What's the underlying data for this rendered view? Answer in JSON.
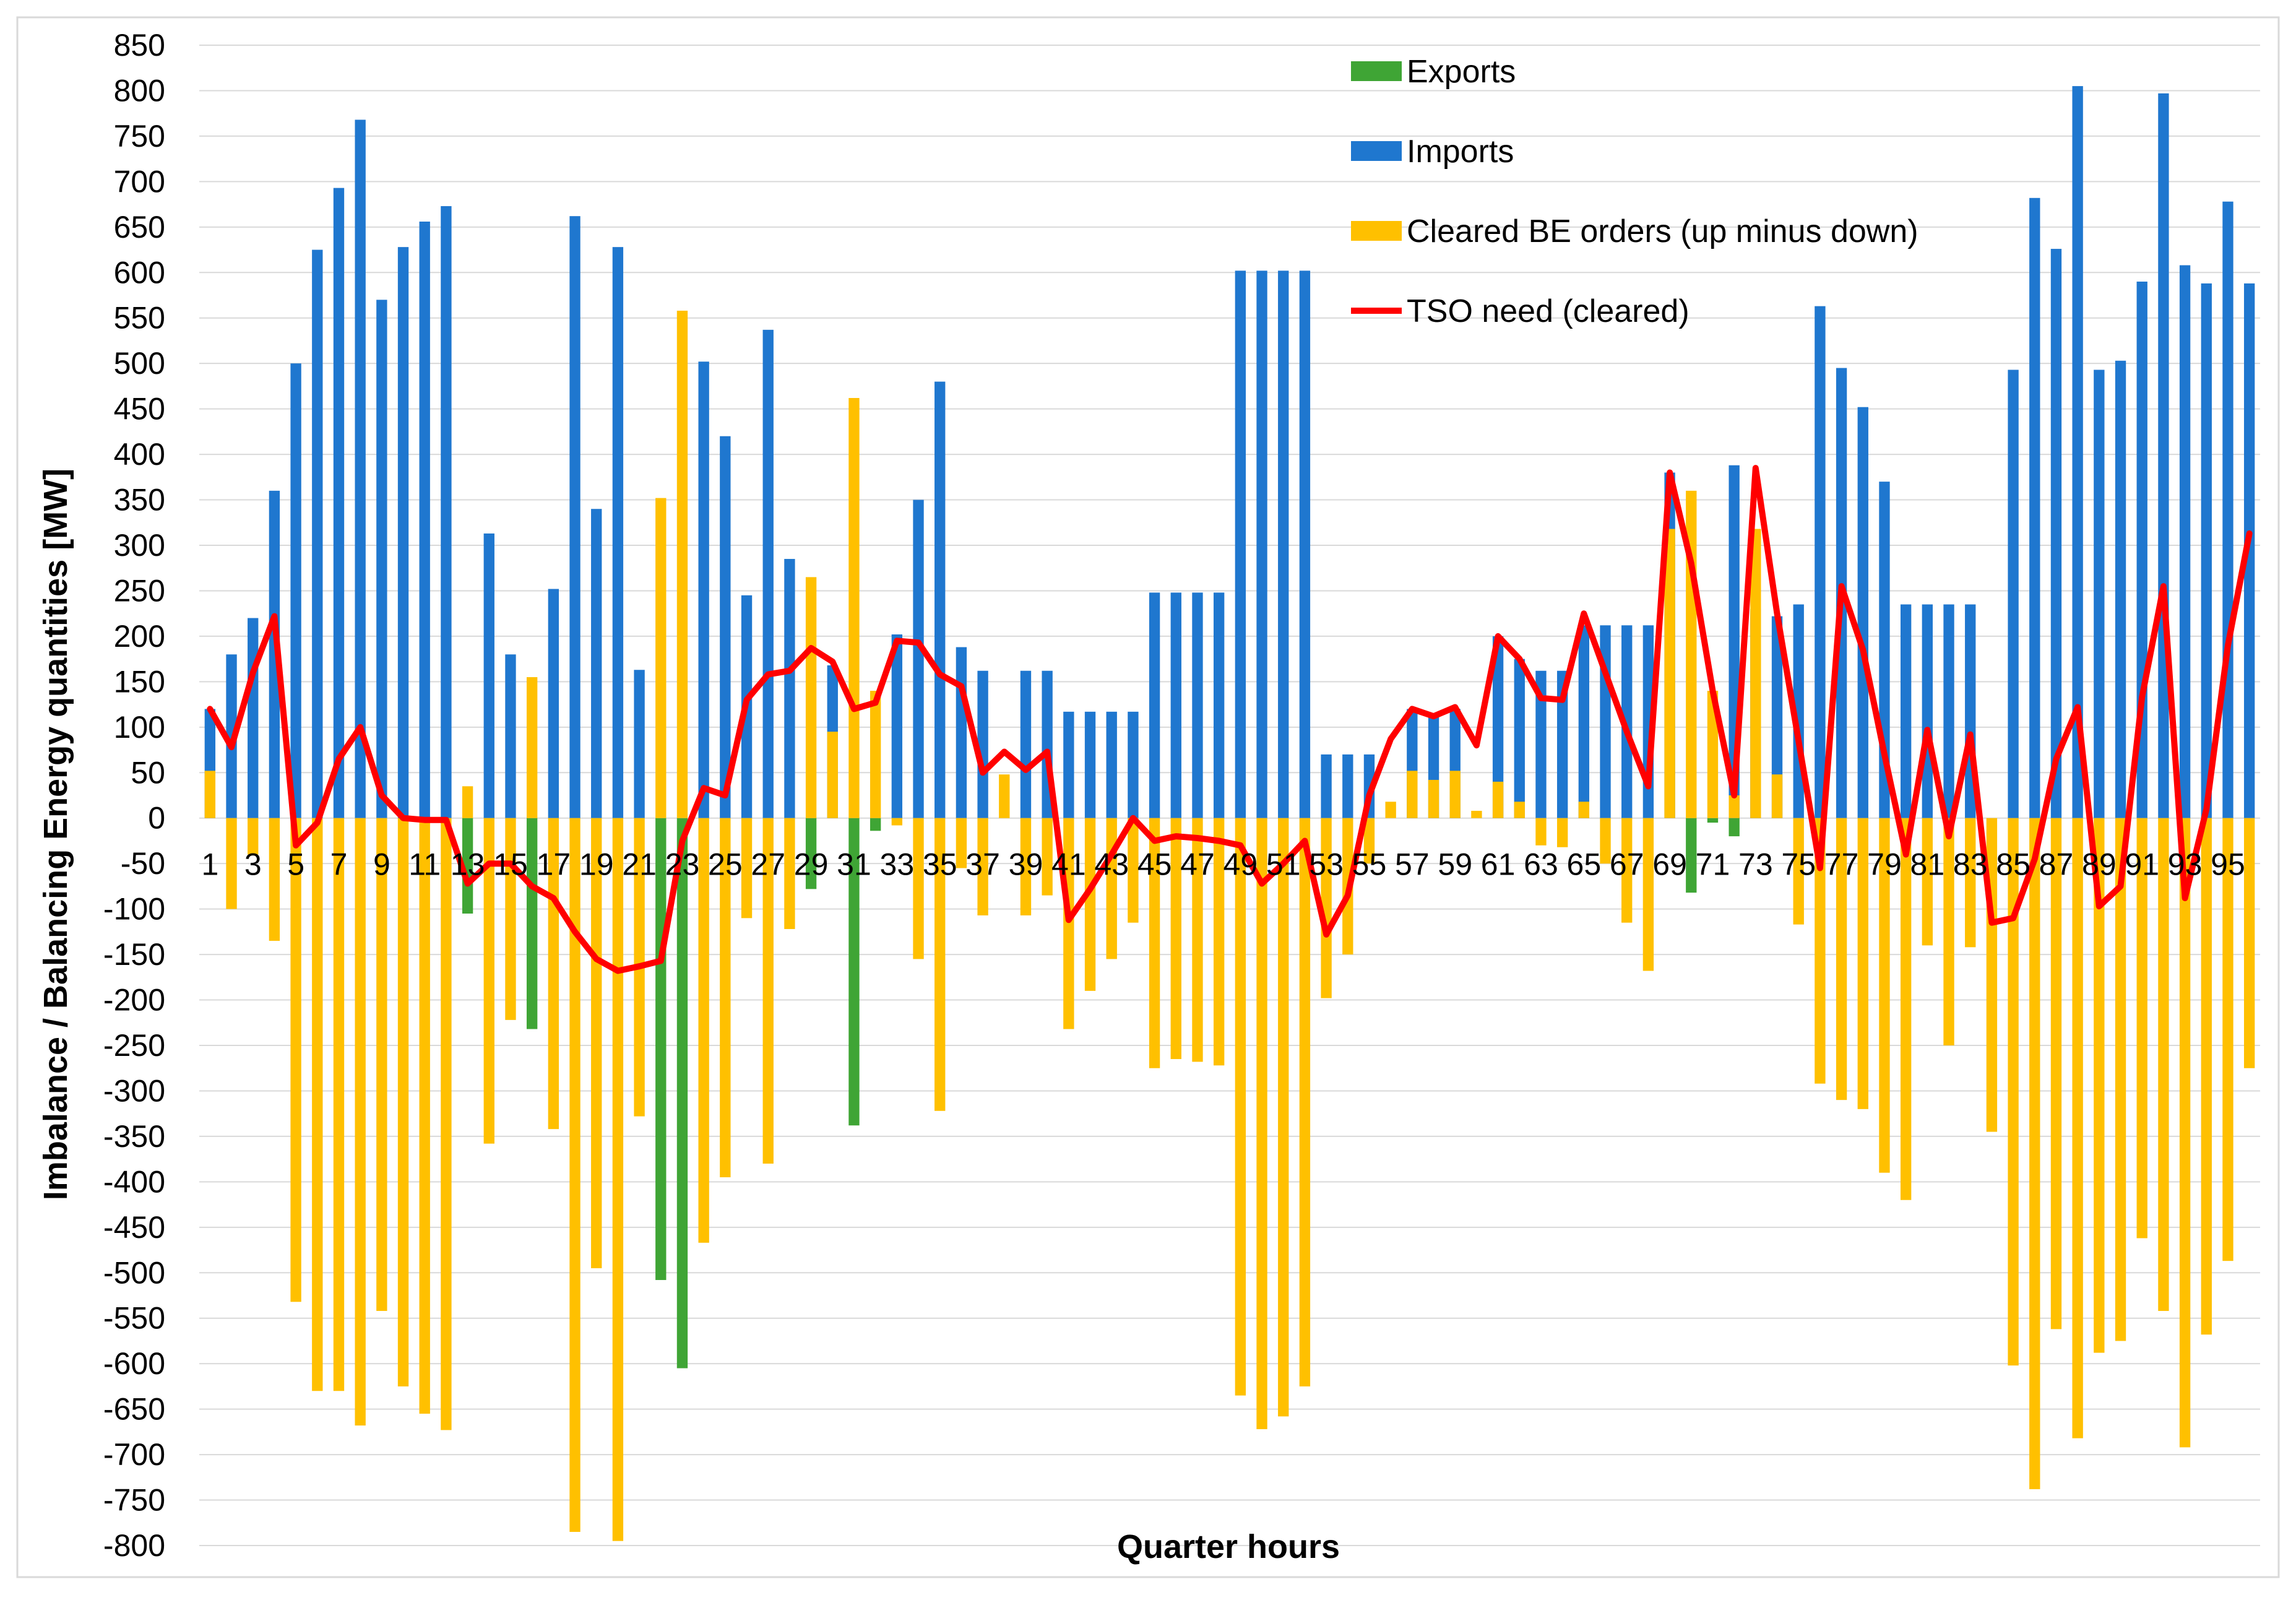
{
  "chart_data": {
    "type": "bar",
    "title": "",
    "xlabel": "Quarter hours",
    "ylabel": "Imbalance / Balancing Energy quantities [MW]",
    "ylim": [
      -800,
      850
    ],
    "ytick_step": 50,
    "x": [
      1,
      2,
      3,
      4,
      5,
      6,
      7,
      8,
      9,
      10,
      11,
      12,
      13,
      14,
      15,
      16,
      17,
      18,
      19,
      20,
      21,
      22,
      23,
      24,
      25,
      26,
      27,
      28,
      29,
      30,
      31,
      32,
      33,
      34,
      35,
      36,
      37,
      38,
      39,
      40,
      41,
      42,
      43,
      44,
      45,
      46,
      47,
      48,
      49,
      50,
      51,
      52,
      53,
      54,
      55,
      56,
      57,
      58,
      59,
      60,
      61,
      62,
      63,
      64,
      65,
      66,
      67,
      68,
      69,
      70,
      71,
      72,
      73,
      74,
      75,
      76,
      77,
      78,
      79,
      80,
      81,
      82,
      83,
      84,
      85,
      86,
      87,
      88,
      89,
      90,
      91,
      92,
      93,
      94,
      95,
      96
    ],
    "xtick_labels": [
      "1",
      "3",
      "5",
      "7",
      "9",
      "11",
      "13",
      "15",
      "17",
      "19",
      "21",
      "23",
      "25",
      "27",
      "29",
      "31",
      "33",
      "35",
      "37",
      "39",
      "41",
      "43",
      "45",
      "47",
      "49",
      "51",
      "53",
      "55",
      "57",
      "59",
      "61",
      "63",
      "65",
      "67",
      "69",
      "71",
      "73",
      "75",
      "77",
      "79",
      "81",
      "83",
      "85",
      "87",
      "89",
      "91",
      "93",
      "95"
    ],
    "grid": true,
    "legend_position": "top-right",
    "series": [
      {
        "name": "Exports",
        "kind": "bar",
        "color": "#3FA535",
        "values": [
          0,
          0,
          0,
          0,
          0,
          0,
          0,
          0,
          0,
          0,
          0,
          0,
          -105,
          0,
          0,
          -232,
          0,
          0,
          0,
          0,
          0,
          -508,
          -605,
          0,
          0,
          0,
          0,
          0,
          -78,
          0,
          -338,
          -14,
          0,
          0,
          0,
          0,
          0,
          0,
          0,
          0,
          0,
          0,
          0,
          0,
          0,
          0,
          0,
          0,
          0,
          0,
          0,
          0,
          0,
          0,
          0,
          0,
          0,
          0,
          0,
          0,
          0,
          0,
          0,
          0,
          0,
          0,
          0,
          0,
          0,
          -82,
          -5,
          -20,
          0,
          0,
          0,
          0,
          0,
          0,
          0,
          0,
          0,
          0,
          0,
          0,
          0,
          0,
          0,
          0,
          0,
          0,
          0,
          0,
          0,
          0,
          0,
          0
        ]
      },
      {
        "name": "Imports",
        "kind": "bar",
        "color": "#1F77CF",
        "values": [
          120,
          180,
          220,
          360,
          500,
          625,
          693,
          768,
          570,
          628,
          656,
          673,
          0,
          313,
          180,
          0,
          252,
          662,
          340,
          628,
          163,
          0,
          0,
          502,
          420,
          245,
          537,
          285,
          0,
          168,
          0,
          0,
          202,
          350,
          480,
          188,
          162,
          0,
          162,
          162,
          117,
          117,
          117,
          117,
          248,
          248,
          248,
          248,
          602,
          602,
          602,
          602,
          70,
          70,
          70,
          0,
          120,
          115,
          120,
          0,
          200,
          175,
          162,
          162,
          212,
          212,
          212,
          212,
          380,
          0,
          0,
          388,
          230,
          222,
          235,
          563,
          495,
          452,
          370,
          235,
          235,
          235,
          235,
          0,
          493,
          682,
          626,
          805,
          493,
          503,
          590,
          797,
          608,
          588,
          678,
          588
        ]
      },
      {
        "name": "Cleared BE orders (up minus down)",
        "kind": "bar",
        "color": "#FFC000",
        "values": [
          52,
          -100,
          -40,
          -135,
          -532,
          -630,
          -630,
          -668,
          -542,
          -625,
          -655,
          -673,
          35,
          -358,
          -222,
          155,
          -342,
          -785,
          -495,
          -795,
          -328,
          352,
          558,
          -467,
          -395,
          -110,
          -380,
          -122,
          265,
          95,
          462,
          140,
          -8,
          -155,
          -322,
          -55,
          -107,
          48,
          -107,
          -85,
          -232,
          -190,
          -155,
          -115,
          -275,
          -265,
          -268,
          -272,
          -635,
          -672,
          -658,
          -625,
          -198,
          -150,
          -50,
          18,
          52,
          42,
          52,
          8,
          40,
          18,
          -30,
          -32,
          18,
          -50,
          -115,
          -168,
          318,
          360,
          140,
          25,
          318,
          48,
          -117,
          -292,
          -310,
          -320,
          -390,
          -420,
          -140,
          -250,
          -142,
          -345,
          -602,
          -738,
          -562,
          -682,
          -588,
          -575,
          -462,
          -542,
          -692,
          -568,
          -487,
          -275
        ]
      },
      {
        "name": "TSO need (cleared)",
        "kind": "line",
        "color": "#FF0000",
        "values": [
          120,
          78,
          160,
          222,
          -30,
          -5,
          65,
          100,
          25,
          0,
          -2,
          -2,
          -72,
          -50,
          -50,
          -75,
          -88,
          -125,
          -155,
          -168,
          -163,
          -157,
          -25,
          33,
          25,
          130,
          158,
          162,
          187,
          172,
          120,
          127,
          195,
          193,
          158,
          145,
          50,
          73,
          53,
          73,
          -112,
          -78,
          -40,
          0,
          -25,
          -20,
          -22,
          -25,
          -30,
          -72,
          -50,
          -25,
          -128,
          -85,
          25,
          87,
          120,
          112,
          122,
          80,
          200,
          175,
          132,
          130,
          225,
          160,
          95,
          35,
          380,
          280,
          140,
          25,
          385,
          225,
          85,
          -55,
          255,
          185,
          70,
          -40,
          97,
          -20,
          92,
          -115,
          -110,
          -45,
          65,
          122,
          -97,
          -75,
          133,
          255,
          -88,
          10,
          190,
          313
        ]
      }
    ]
  }
}
